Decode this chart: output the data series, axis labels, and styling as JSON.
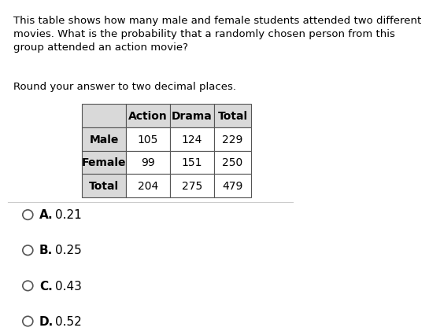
{
  "title_text": "This table shows how many male and female students attended two different\nmovies. What is the probability that a randomly chosen person from this\ngroup attended an action movie?",
  "subtitle_text": "Round your answer to two decimal places.",
  "table_headers": [
    "",
    "Action",
    "Drama",
    "Total"
  ],
  "table_rows": [
    [
      "Male",
      "105",
      "124",
      "229"
    ],
    [
      "Female",
      "99",
      "151",
      "250"
    ],
    [
      "Total",
      "204",
      "275",
      "479"
    ]
  ],
  "choices": [
    {
      "letter": "A.",
      "value": "0.21"
    },
    {
      "letter": "B.",
      "value": "0.25"
    },
    {
      "letter": "C.",
      "value": "0.43"
    },
    {
      "letter": "D.",
      "value": "0.52"
    }
  ],
  "bg_color": "#ffffff",
  "header_bg": "#d9d9d9",
  "row_label_bg": "#d9d9d9",
  "cell_bg": "#ffffff",
  "border_color": "#555555",
  "text_color": "#000000",
  "title_fontsize": 9.5,
  "subtitle_fontsize": 9.5,
  "table_fontsize": 10,
  "choice_fontsize": 11,
  "sep_color": "#cccccc"
}
